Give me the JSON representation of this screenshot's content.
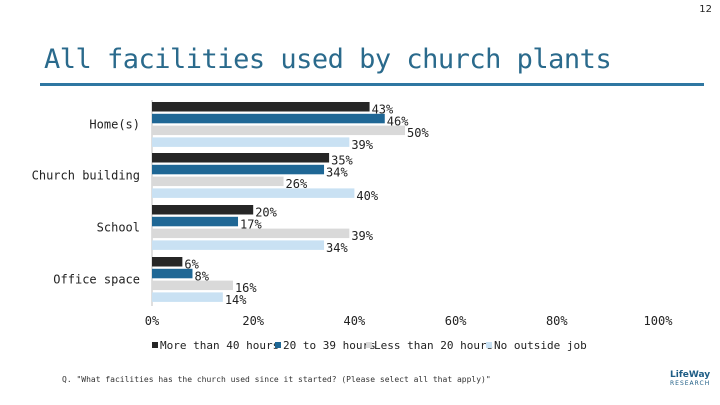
{
  "page_number": "12",
  "title": "All facilities used by church plants",
  "footnote": "Q. \"What facilities has the church used since it started? (Please select all that apply)\"",
  "logo": {
    "line1": "LifeWay",
    "line2": "RESEARCH"
  },
  "colors": {
    "title": "#2a6a8c",
    "rule": "#2f77a2",
    "series": [
      "#262626",
      "#1f6795",
      "#d9d9d9",
      "#c9e1f3"
    ]
  },
  "chart_data": {
    "type": "bar",
    "orientation": "horizontal",
    "categories": [
      "Home(s)",
      "Church building",
      "School",
      "Office space"
    ],
    "series": [
      {
        "name": "More than 40 hours",
        "values": [
          43,
          35,
          20,
          6
        ]
      },
      {
        "name": "20 to 39 hours",
        "values": [
          46,
          34,
          17,
          8
        ]
      },
      {
        "name": "Less than 20 hours",
        "values": [
          50,
          26,
          39,
          16
        ]
      },
      {
        "name": "No outside job",
        "values": [
          39,
          40,
          34,
          14
        ]
      }
    ],
    "value_labels": [
      [
        "43%",
        "35%",
        "20%",
        "6%"
      ],
      [
        "46%",
        "34%",
        "17%",
        "8%"
      ],
      [
        "50%",
        "26%",
        "39%",
        "16%"
      ],
      [
        "39%",
        "40%",
        "34%",
        "14%"
      ]
    ],
    "xlim": [
      0,
      100
    ],
    "x_ticks": [
      0,
      20,
      40,
      60,
      80,
      100
    ],
    "x_tick_labels": [
      "0%",
      "20%",
      "40%",
      "60%",
      "80%",
      "100%"
    ],
    "legend_position": "bottom",
    "grid": false
  }
}
